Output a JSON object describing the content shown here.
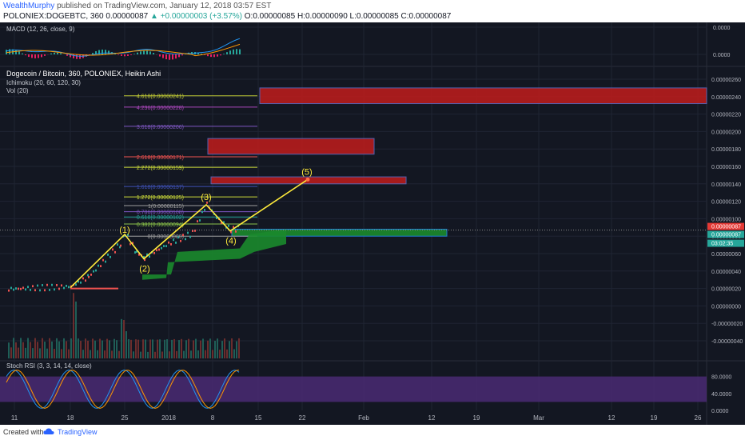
{
  "header": {
    "author": "WealthMurphy",
    "published_text": "published on TradingView.com, January 12, 2018 03:57 EST",
    "symbol": "POLONIEX:DOGEBTC, 360",
    "last": "0.00000087",
    "change": "▲ +0.00000003 (+3.57%)",
    "ohlc": "O:0.00000085 H:0.00000090 L:0.00000085 C:0.00000087"
  },
  "legends": {
    "macd": "MACD (12, 26, close, 9)",
    "main_title": "Dogecoin / Bitcoin, 360, POLONIEX, Heikin Ashi",
    "ichimoku": "Ichimoku (20, 60, 120, 30)",
    "vol": "Vol (20)",
    "stoch": "Stoch RSI (3, 3, 14, 14, close)"
  },
  "footer": {
    "created_with": "Created with",
    "brand": "TradingView"
  },
  "colors": {
    "bg": "#131722",
    "grid": "#1f2433",
    "up": "#26a69a",
    "down": "#ef5350",
    "wave": "#ffeb3b",
    "box_red": "#b71c1c",
    "box_green": "#1b8a2c",
    "stoch_band": "#4a2a73",
    "price_badge": "#e53935",
    "price_badge2": "#26a69a"
  },
  "chart_data": [
    {
      "type": "line",
      "title": "MACD (12, 26, close, 9)",
      "y_ticks": [
        "0.0000",
        "0.0000"
      ]
    },
    {
      "type": "line",
      "title": "Dogecoin / Bitcoin, 360, POLONIEX, Heikin Ashi",
      "x_ticks": [
        "11",
        "18",
        "25",
        "2018",
        "8",
        "15",
        "22",
        "Feb",
        "12",
        "19",
        "Mar",
        "12",
        "19",
        "26"
      ],
      "y_ticks": [
        "0.00000260",
        "0.00000240",
        "0.00000220",
        "0.00000200",
        "0.00000180",
        "0.00000160",
        "0.00000140",
        "0.00000120",
        "0.00000100",
        "0.00000080",
        "0.00000060",
        "0.00000040",
        "0.00000020",
        "0.00000000",
        "-0.00000020",
        "-0.00000040"
      ],
      "ylim": [
        -4.5e-07,
        2.65e-06
      ],
      "price_badges": [
        "0.00000087",
        "0.00000087",
        "03:02:35"
      ],
      "fib_levels": [
        {
          "label": "4.618(0.00000241)",
          "value": 2.41e-06,
          "color": "#c0ca33"
        },
        {
          "label": "4.236(0.00000228)",
          "value": 2.28e-06,
          "color": "#ab47bc"
        },
        {
          "label": "3.618(0.00000206)",
          "value": 2.06e-06,
          "color": "#7e57c2"
        },
        {
          "label": "2.618(0.00000171)",
          "value": 1.71e-06,
          "color": "#ef5350"
        },
        {
          "label": "2.272(0.00000159)",
          "value": 1.59e-06,
          "color": "#cddc39"
        },
        {
          "label": "1.618(0.00000137)",
          "value": 1.37e-06,
          "color": "#3f51b5"
        },
        {
          "label": "1.272(0.00000125)",
          "value": 1.25e-06,
          "color": "#cddc39"
        },
        {
          "label": "1(0.00000115)",
          "value": 1.15e-06,
          "color": "#9e9e9e"
        },
        {
          "label": "0.786(0.00000108)",
          "value": 1.08e-06,
          "color": "#7e57c2"
        },
        {
          "label": "0.618(0.00000102)",
          "value": 1.02e-06,
          "color": "#26a69a"
        },
        {
          "label": "0.382(0.00000094)",
          "value": 9.4e-07,
          "color": "#8bc34a"
        },
        {
          "label": "0(0.00000080)",
          "value": 8e-07,
          "color": "#9e9e9e"
        }
      ],
      "wave_labels": [
        "(1)",
        "(2)",
        "(3)",
        "(4)",
        "(5)"
      ],
      "wave_points": [
        {
          "x": "Dec 16",
          "y": 2.1e-07
        },
        {
          "x": "Dec 25",
          "y": 8.2e-07
        },
        {
          "x": "Dec 28",
          "y": 5.4e-07
        },
        {
          "x": "Jan 7",
          "y": 1.16e-06
        },
        {
          "x": "Jan 10",
          "y": 8.6e-07
        },
        {
          "x": "Jan 22",
          "y": 1.45e-06
        }
      ],
      "zones": [
        {
          "kind": "resistance",
          "y_low": 2.32e-06,
          "y_high": 2.5e-06
        },
        {
          "kind": "resistance",
          "y_low": 1.74e-06,
          "y_high": 1.92e-06
        },
        {
          "kind": "resistance",
          "y_low": 1.4e-06,
          "y_high": 1.48e-06
        },
        {
          "kind": "support",
          "y_low": 8e-07,
          "y_high": 8.8e-07
        }
      ]
    },
    {
      "type": "line",
      "title": "Stoch RSI (3, 3, 14, 14, close)",
      "y_ticks": [
        "80.0000",
        "40.0000",
        "0.0000"
      ],
      "ylim": [
        0,
        100
      ],
      "band": [
        20,
        80
      ]
    }
  ]
}
